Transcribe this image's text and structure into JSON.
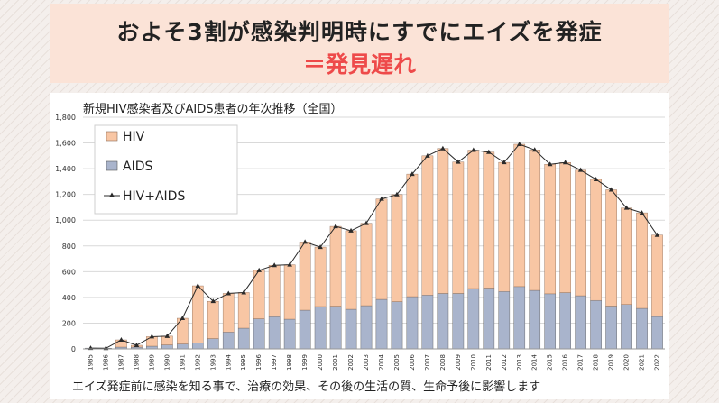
{
  "header": {
    "title": "およそ3割が感染判明時にすでにエイズを発症",
    "subtitle": "＝発見遅れ"
  },
  "footnote": "エイズ発症前に感染を知る事で、治療の効果、その後の生活の質、生命予後に影響します",
  "colors": {
    "hiv": "#f8c6a4",
    "aids": "#a9b4cc",
    "line": "#2a2a2a",
    "accent": "#ee4a4a",
    "header_bg": "#fbe3d7"
  },
  "chart_data": {
    "type": "bar",
    "title": "新規HIV感染者及びAIDS患者の年次推移（全国）",
    "stacked": true,
    "categories": [
      "1985",
      "1986",
      "1987",
      "1988",
      "1989",
      "1990",
      "1991",
      "1992",
      "1993",
      "1994",
      "1995",
      "1996",
      "1997",
      "1998",
      "1999",
      "2000",
      "2001",
      "2002",
      "2003",
      "2004",
      "2005",
      "2006",
      "2007",
      "2008",
      "2009",
      "2010",
      "2011",
      "2012",
      "2013",
      "2014",
      "2015",
      "2016",
      "2017",
      "2018",
      "2019",
      "2020",
      "2021",
      "2022"
    ],
    "series": [
      {
        "name": "AIDS",
        "values": [
          6,
          5,
          14,
          14,
          21,
          31,
          38,
          45,
          80,
          131,
          161,
          234,
          251,
          231,
          301,
          329,
          332,
          308,
          336,
          385,
          367,
          406,
          418,
          431,
          431,
          469,
          473,
          447,
          484,
          455,
          428,
          437,
          413,
          377,
          333,
          345,
          315,
          252
        ]
      },
      {
        "name": "HIV",
        "values": [
          0,
          0,
          56,
          14,
          74,
          68,
          200,
          445,
          290,
          300,
          277,
          376,
          399,
          423,
          530,
          462,
          620,
          610,
          640,
          780,
          832,
          952,
          1082,
          1126,
          1021,
          1075,
          1056,
          1002,
          1106,
          1091,
          1006,
          1011,
          976,
          940,
          903,
          750,
          742,
          632
        ]
      }
    ],
    "line_series": {
      "name": "HIV+AIDS",
      "values": [
        6,
        5,
        70,
        28,
        95,
        99,
        238,
        490,
        370,
        431,
        438,
        610,
        650,
        654,
        831,
        791,
        952,
        918,
        976,
        1165,
        1199,
        1358,
        1500,
        1557,
        1452,
        1544,
        1529,
        1449,
        1590,
        1546,
        1434,
        1448,
        1389,
        1317,
        1236,
        1095,
        1057,
        884
      ]
    },
    "ylim": [
      0,
      1800
    ],
    "yticks": [
      "0",
      "200",
      "400",
      "600",
      "800",
      "1,000",
      "1,200",
      "1,400",
      "1,600",
      "1,800"
    ],
    "legend": [
      "HIV",
      "AIDS",
      "HIV+AIDS"
    ],
    "legend_position": "top-left",
    "grid": true
  }
}
